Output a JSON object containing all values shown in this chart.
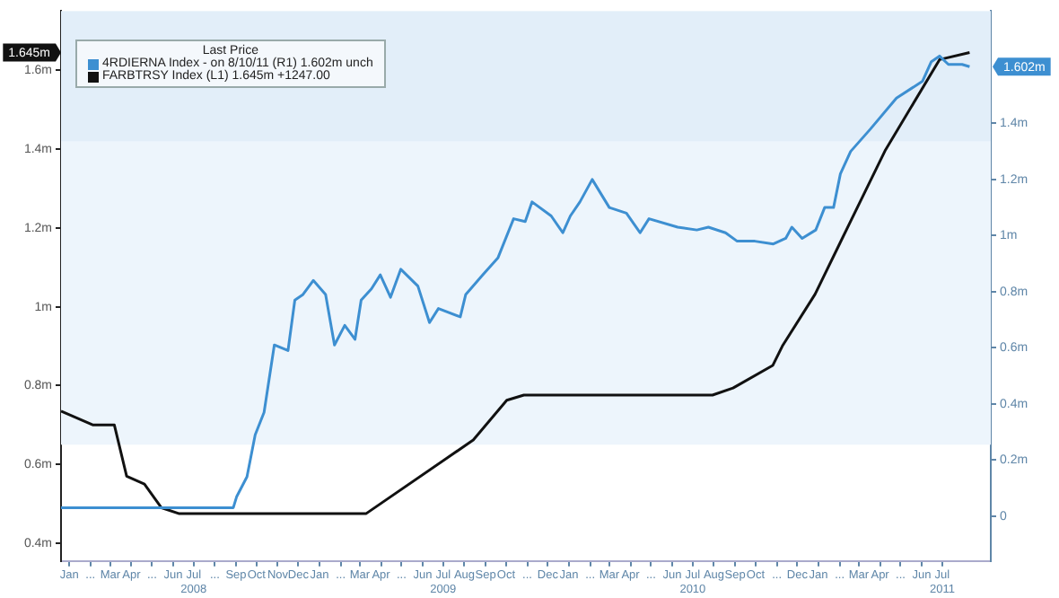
{
  "chart_data": {
    "type": "line",
    "legend_title": "Last Price",
    "legend": "top left",
    "grid": false,
    "marker": "none",
    "line_style": "solid",
    "xlim": [
      "2007-12-20",
      "2011-09-10"
    ],
    "xticks": [
      {
        "value": "2008-01-01",
        "label": "Jan"
      },
      {
        "value": "2008-02-01",
        "label": "..."
      },
      {
        "value": "2008-03-01",
        "label": "Mar"
      },
      {
        "value": "2008-04-01",
        "label": "Apr"
      },
      {
        "value": "2008-05-01",
        "label": "..."
      },
      {
        "value": "2008-06-01",
        "label": "Jun"
      },
      {
        "value": "2008-07-01",
        "label": "Jul\n2008"
      },
      {
        "value": "2008-08-01",
        "label": "..."
      },
      {
        "value": "2008-09-01",
        "label": "Sep"
      },
      {
        "value": "2008-10-01",
        "label": "Oct"
      },
      {
        "value": "2008-11-01",
        "label": "Nov"
      },
      {
        "value": "2008-12-01",
        "label": "Dec"
      },
      {
        "value": "2009-01-01",
        "label": "Jan"
      },
      {
        "value": "2009-02-01",
        "label": "..."
      },
      {
        "value": "2009-03-01",
        "label": "Mar"
      },
      {
        "value": "2009-04-01",
        "label": "Apr"
      },
      {
        "value": "2009-05-01",
        "label": "..."
      },
      {
        "value": "2009-06-01",
        "label": "Jun"
      },
      {
        "value": "2009-07-01",
        "label": "Jul\n2009"
      },
      {
        "value": "2009-08-01",
        "label": "Aug"
      },
      {
        "value": "2009-09-01",
        "label": "Sep"
      },
      {
        "value": "2009-10-01",
        "label": "Oct"
      },
      {
        "value": "2009-11-01",
        "label": "..."
      },
      {
        "value": "2009-12-01",
        "label": "Dec"
      },
      {
        "value": "2010-01-01",
        "label": "Jan"
      },
      {
        "value": "2010-02-01",
        "label": "..."
      },
      {
        "value": "2010-03-01",
        "label": "Mar"
      },
      {
        "value": "2010-04-01",
        "label": "Apr"
      },
      {
        "value": "2010-05-01",
        "label": "..."
      },
      {
        "value": "2010-06-01",
        "label": "Jun"
      },
      {
        "value": "2010-07-01",
        "label": "Jul\n2010"
      },
      {
        "value": "2010-08-01",
        "label": "Aug"
      },
      {
        "value": "2010-09-01",
        "label": "Sep"
      },
      {
        "value": "2010-10-01",
        "label": "Oct"
      },
      {
        "value": "2010-11-01",
        "label": "..."
      },
      {
        "value": "2010-12-01",
        "label": "Dec"
      },
      {
        "value": "2011-01-01",
        "label": "Jan"
      },
      {
        "value": "2011-02-01",
        "label": "..."
      },
      {
        "value": "2011-03-01",
        "label": "Mar"
      },
      {
        "value": "2011-04-01",
        "label": "Apr"
      },
      {
        "value": "2011-05-01",
        "label": "..."
      },
      {
        "value": "2011-06-01",
        "label": "Jun"
      },
      {
        "value": "2011-07-01",
        "label": "Jul\n2011"
      }
    ],
    "ylim": [
      0.355,
      1.75
    ],
    "yticks": [
      {
        "value": 0.4,
        "label": "0.4m"
      },
      {
        "value": 0.6,
        "label": "0.6m"
      },
      {
        "value": 0.8,
        "label": "0.8m"
      },
      {
        "value": 1,
        "label": "1m"
      },
      {
        "value": 1.2,
        "label": "1.2m"
      },
      {
        "value": 1.4,
        "label": "1.4m"
      },
      {
        "value": 1.6,
        "label": "1.6m"
      }
    ],
    "y2lim": [
      -0.16,
      1.8
    ],
    "y2ticks": [
      {
        "value": 0,
        "label": "0"
      },
      {
        "value": 0.2,
        "label": "0.2m"
      },
      {
        "value": 0.4,
        "label": "0.4m"
      },
      {
        "value": 0.6,
        "label": "0.6m"
      },
      {
        "value": 0.8,
        "label": "0.8m"
      },
      {
        "value": 1,
        "label": "1m"
      },
      {
        "value": 1.2,
        "label": "1.2m"
      },
      {
        "value": 1.4,
        "label": "1.4m"
      }
    ],
    "bands": [
      {
        "axis": "y",
        "from": 0.65,
        "to": 1.75,
        "color": "#edf5fc"
      },
      {
        "axis": "y",
        "from": 1.42,
        "to": 1.75,
        "color": "#e2eef9"
      }
    ],
    "annotations": [
      "1.602m",
      "1.645m"
    ],
    "series": [
      {
        "name": "4RDIERNA Index - on 8/10/11 (R1) 1.602m unch",
        "color": "#3d8fd1",
        "axis": "y2",
        "x": [
          "2007-12-20",
          "2008-08-28",
          "2008-09-02",
          "2008-09-17",
          "2008-09-29",
          "2008-10-12",
          "2008-10-27",
          "2008-11-16",
          "2008-11-26",
          "2008-12-08",
          "2008-12-23",
          "2009-01-10",
          "2009-01-23",
          "2009-02-07",
          "2009-02-22",
          "2009-03-03",
          "2009-03-18",
          "2009-03-31",
          "2009-04-15",
          "2009-04-30",
          "2009-05-25",
          "2009-06-11",
          "2009-06-24",
          "2009-07-26",
          "2009-08-03",
          "2009-08-28",
          "2009-09-19",
          "2009-10-12",
          "2009-10-29",
          "2009-11-08",
          "2009-12-06",
          "2009-12-23",
          "2010-01-03",
          "2010-01-17",
          "2010-02-04",
          "2010-03-01",
          "2010-03-26",
          "2010-04-15",
          "2010-04-28",
          "2010-06-09",
          "2010-07-07",
          "2010-07-24",
          "2010-08-18",
          "2010-09-04",
          "2010-09-30",
          "2010-10-27",
          "2010-11-14",
          "2010-11-23",
          "2010-12-08",
          "2010-12-28",
          "2011-01-10",
          "2011-01-23",
          "2011-02-02",
          "2011-02-17",
          "2011-03-18",
          "2011-04-25",
          "2011-06-02",
          "2011-06-15",
          "2011-06-27",
          "2011-07-10",
          "2011-07-30",
          "2011-08-10"
        ],
        "values": [
          0.03,
          0.03,
          0.07,
          0.14,
          0.29,
          0.37,
          0.61,
          0.59,
          0.77,
          0.79,
          0.84,
          0.79,
          0.61,
          0.68,
          0.63,
          0.77,
          0.81,
          0.86,
          0.78,
          0.88,
          0.82,
          0.69,
          0.74,
          0.71,
          0.79,
          0.86,
          0.92,
          1.06,
          1.05,
          1.12,
          1.07,
          1.01,
          1.07,
          1.12,
          1.2,
          1.1,
          1.08,
          1.01,
          1.06,
          1.03,
          1.02,
          1.03,
          1.01,
          0.98,
          0.98,
          0.97,
          0.99,
          1.03,
          0.99,
          1.02,
          1.1,
          1.1,
          1.22,
          1.3,
          1.38,
          1.49,
          1.55,
          1.62,
          1.64,
          1.61,
          1.61,
          1.602
        ]
      },
      {
        "name": "FARBTRSY Index (L1) 1.645m +1247.00",
        "color": "#111111",
        "axis": "y",
        "x": [
          "2007-12-20",
          "2008-02-05",
          "2008-03-07",
          "2008-03-25",
          "2008-04-20",
          "2008-05-15",
          "2008-06-10",
          "2009-03-10",
          "2009-08-14",
          "2009-10-02",
          "2009-10-27",
          "2010-07-30",
          "2010-08-29",
          "2010-10-26",
          "2010-11-09",
          "2010-12-27",
          "2011-02-06",
          "2011-04-09",
          "2011-06-27",
          "2011-08-10"
        ],
        "values": [
          0.735,
          0.7,
          0.7,
          0.57,
          0.55,
          0.49,
          0.475,
          0.475,
          0.662,
          0.763,
          0.776,
          0.776,
          0.794,
          0.851,
          0.9,
          1.032,
          1.178,
          1.398,
          1.627,
          1.645
        ]
      }
    ]
  }
}
